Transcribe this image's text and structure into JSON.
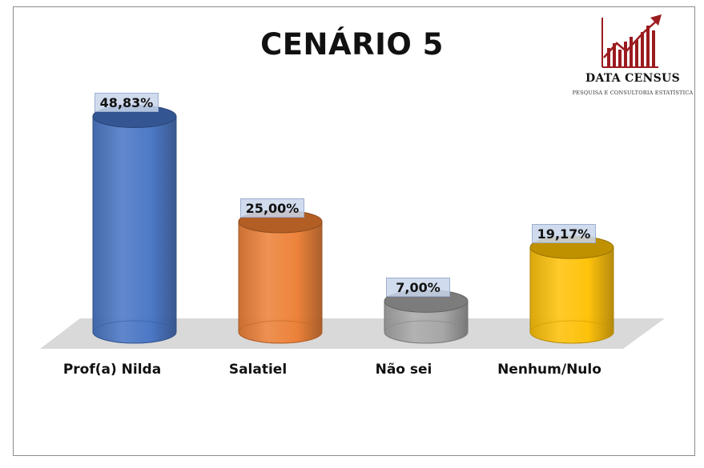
{
  "header": {
    "title": "CENÁRIO 5"
  },
  "logo": {
    "name": "DATA CENSUS",
    "subtitle": "PESQUISA E CONSULTORIA ESTATÍSTICA",
    "icon": "bar-chart-arrow-icon",
    "color": "#9b1b1f"
  },
  "chart_data": {
    "type": "bar",
    "style": "3d-cylinder",
    "title": "CENÁRIO 5",
    "categories": [
      "Prof(a) Nilda",
      "Salatiel",
      "Não sei",
      "Nenhum/Nulo"
    ],
    "values": [
      48.83,
      25.0,
      7.0,
      19.17
    ],
    "value_labels": [
      "48,83%",
      "25,00%",
      "7,00%",
      "19,17%"
    ],
    "colors": [
      "#4472c4",
      "#ed7d31",
      "#a5a5a5",
      "#ffc000"
    ],
    "ylim": [
      0,
      50
    ],
    "grid": false,
    "legend": "none"
  }
}
